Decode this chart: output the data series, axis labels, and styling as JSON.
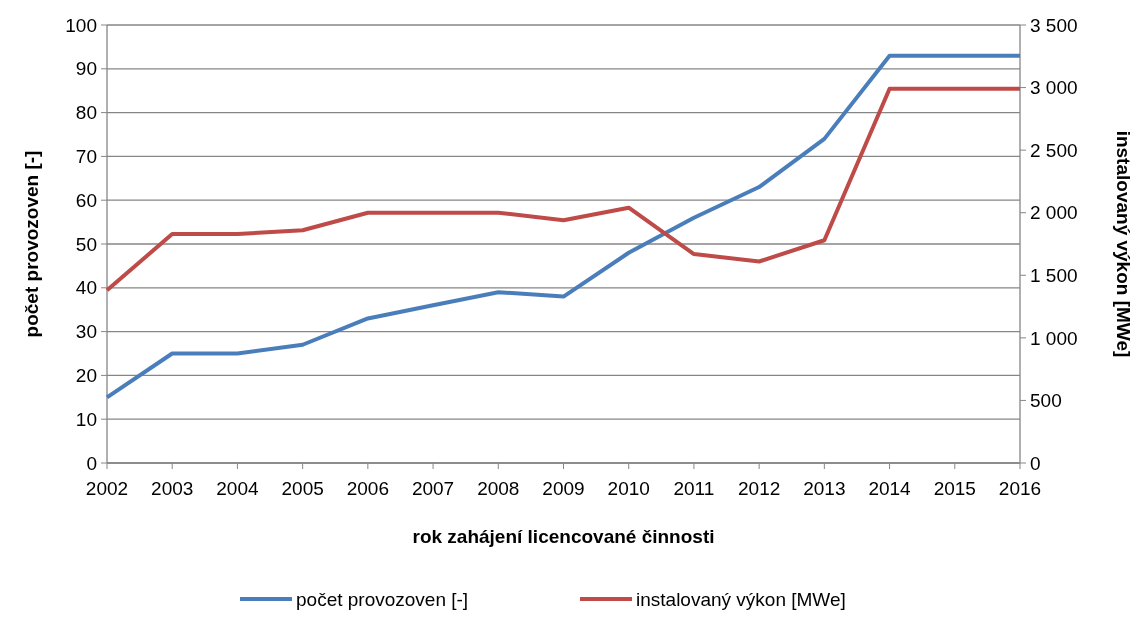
{
  "chart_data": {
    "type": "line",
    "xlabel": "rok zahájení licencované činnosti",
    "ylabel": "počet provozoven [-]",
    "y2label": "instalovaný výkon [MWe]",
    "x": [
      2002,
      2003,
      2004,
      2005,
      2006,
      2007,
      2008,
      2009,
      2010,
      2011,
      2012,
      2013,
      2014,
      2015,
      2016
    ],
    "xlim": [
      2002,
      2016
    ],
    "xticks": [
      2002,
      2003,
      2004,
      2005,
      2006,
      2007,
      2008,
      2009,
      2010,
      2011,
      2012,
      2013,
      2014,
      2015,
      2016
    ],
    "ylim": [
      0,
      100
    ],
    "yticks": [
      0,
      10,
      20,
      30,
      40,
      50,
      60,
      70,
      80,
      90,
      100
    ],
    "y2lim": [
      0,
      3500
    ],
    "y2ticks": [
      0,
      500,
      {
        "value": 1000,
        "label": "1 000"
      },
      {
        "value": 1500,
        "label": "1 500"
      },
      {
        "value": 2000,
        "label": "2 000"
      },
      {
        "value": 2500,
        "label": "2 500"
      },
      {
        "value": 3000,
        "label": "3 000"
      },
      {
        "value": 3500,
        "label": "3 500"
      }
    ],
    "grid": "y",
    "legend": "bottom",
    "marker": "none",
    "line_style": "solid",
    "series": [
      {
        "name": "počet provozoven [-]",
        "color": "#4a7ebb",
        "values": [
          15,
          25,
          25,
          27,
          33,
          36,
          39,
          38,
          48,
          56,
          63,
          74,
          93,
          93,
          93
        ]
      },
      {
        "name": "instalovaný výkon [MWe]",
        "color": "#be4b48",
        "axis": "y2",
        "values": [
          1380,
          1830,
          1830,
          1860,
          2000,
          2000,
          2000,
          1940,
          2040,
          1670,
          1610,
          1780,
          2990,
          2990,
          2990
        ]
      }
    ]
  }
}
